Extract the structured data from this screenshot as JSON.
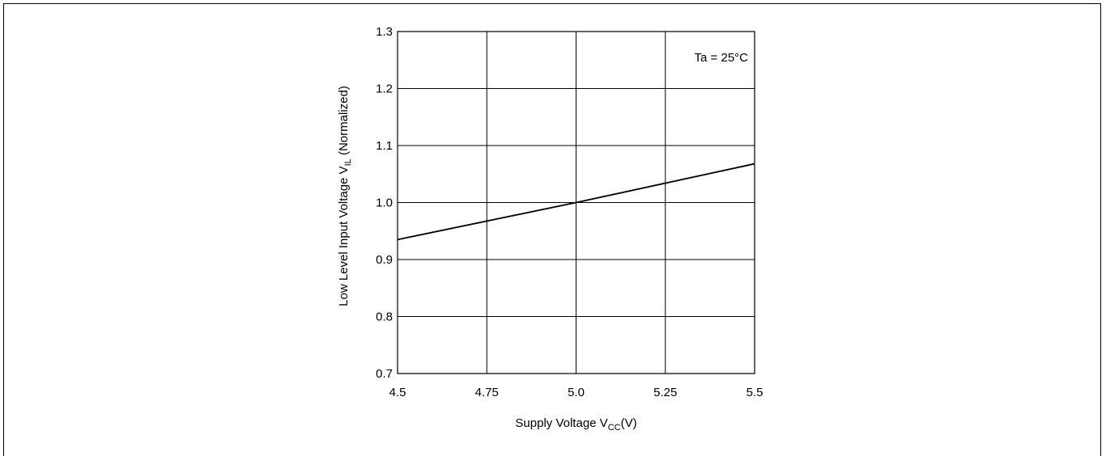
{
  "chart_data": {
    "type": "line",
    "annotation": "Ta = 25°C",
    "xlabel_main": "Supply Voltage V",
    "xlabel_sub": "CC",
    "xlabel_tail": "(V)",
    "ylabel_main": "Low Level Input Voltage V",
    "ylabel_sub": "IL",
    "ylabel_tail": " (Normalized)",
    "xlim": [
      4.5,
      5.5
    ],
    "ylim": [
      0.7,
      1.3
    ],
    "x_ticks": [
      4.5,
      4.75,
      5.0,
      5.25,
      5.5
    ],
    "x_tick_labels": [
      "4.5",
      "4.75",
      "5.0",
      "5.25",
      "5.5"
    ],
    "y_ticks": [
      0.7,
      0.8,
      0.9,
      1.0,
      1.1,
      1.2,
      1.3
    ],
    "y_tick_labels": [
      "0.7",
      "0.8",
      "0.9",
      "1.0",
      "1.1",
      "1.2",
      "1.3"
    ],
    "grid": true,
    "series": [
      {
        "x": [
          4.5,
          5.0,
          5.5
        ],
        "y": [
          0.935,
          1.0,
          1.068
        ]
      }
    ]
  }
}
